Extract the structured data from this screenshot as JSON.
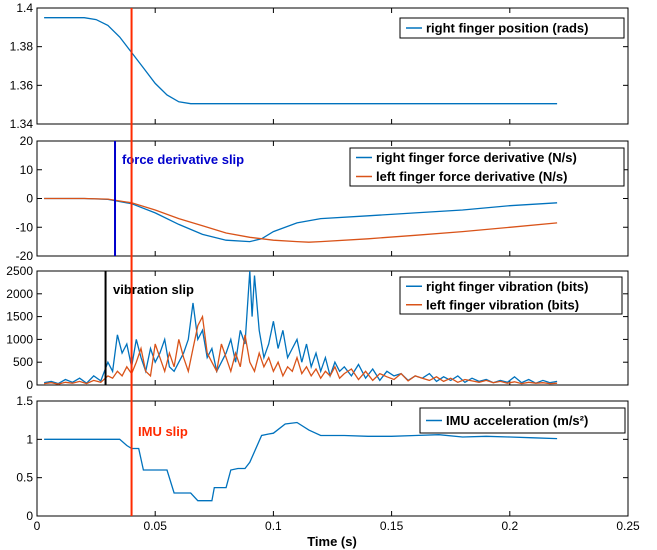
{
  "chart_data": {
    "type": "line",
    "xlabel": "Time (s)",
    "xlim": [
      0,
      0.25
    ],
    "xticks": [
      "0",
      "0.05",
      "0.1",
      "0.15",
      "0.2",
      "0.25"
    ],
    "xtick_values": [
      0,
      0.05,
      0.1,
      0.15,
      0.2,
      0.25
    ],
    "colors": {
      "blue": "#0072BD",
      "orange": "#D95319",
      "red": "#FF2A00",
      "darkblue": "#0000CC",
      "black": "#000000"
    },
    "panels": [
      {
        "ylim": [
          1.34,
          1.4
        ],
        "yticks": [
          "1.34",
          "1.36",
          "1.38",
          "1.4"
        ],
        "ytick_values": [
          1.34,
          1.36,
          1.38,
          1.4
        ],
        "legend_position": "top-right",
        "series": [
          {
            "name": "right finger position (rads)",
            "color": "#0072BD",
            "x": [
              0.003,
              0.02,
              0.025,
              0.03,
              0.035,
              0.04,
              0.045,
              0.05,
              0.055,
              0.06,
              0.065,
              0.07,
              0.1,
              0.15,
              0.2,
              0.22
            ],
            "y": [
              1.395,
              1.395,
              1.394,
              1.391,
              1.385,
              1.377,
              1.369,
              1.361,
              1.355,
              1.3515,
              1.3505,
              1.3505,
              1.3505,
              1.3505,
              1.3505,
              1.3505
            ]
          }
        ]
      },
      {
        "ylim": [
          -20,
          20
        ],
        "yticks": [
          "-20",
          "-10",
          "0",
          "10",
          "20"
        ],
        "ytick_values": [
          -20,
          -10,
          0,
          10,
          20
        ],
        "legend_position": "top-right",
        "annotation": {
          "text": "force derivative slip",
          "x": 0.033,
          "color": "#0000CC"
        },
        "series": [
          {
            "name": "right finger force derivative (N/s)",
            "color": "#0072BD",
            "x": [
              0.003,
              0.02,
              0.03,
              0.04,
              0.05,
              0.06,
              0.07,
              0.08,
              0.09,
              0.095,
              0.1,
              0.11,
              0.12,
              0.14,
              0.16,
              0.18,
              0.2,
              0.22
            ],
            "y": [
              0,
              0,
              -0.3,
              -1.8,
              -5,
              -9,
              -12.5,
              -14.5,
              -15,
              -14,
              -11.5,
              -8.5,
              -7,
              -6,
              -5,
              -4,
              -2.5,
              -1.5
            ]
          },
          {
            "name": "left finger force derivative (N/s)",
            "color": "#D95319",
            "x": [
              0.003,
              0.02,
              0.03,
              0.04,
              0.05,
              0.06,
              0.07,
              0.08,
              0.09,
              0.1,
              0.11,
              0.115,
              0.12,
              0.14,
              0.16,
              0.18,
              0.2,
              0.22
            ],
            "y": [
              0,
              0,
              -0.2,
              -1.5,
              -4,
              -7,
              -9.5,
              -12,
              -13.5,
              -14.5,
              -15,
              -15.2,
              -15,
              -14,
              -12.8,
              -11.5,
              -10,
              -8.5
            ]
          }
        ]
      },
      {
        "ylim": [
          0,
          2500
        ],
        "yticks": [
          "0",
          "500",
          "1000",
          "1500",
          "2000",
          "2500"
        ],
        "ytick_values": [
          0,
          500,
          1000,
          1500,
          2000,
          2500
        ],
        "legend_position": "top-right",
        "annotation": {
          "text": "vibration slip",
          "x": 0.029,
          "color": "#000000"
        },
        "series": [
          {
            "name": "right finger vibration (bits)",
            "color": "#0072BD",
            "x": [
              0.003,
              0.006,
              0.009,
              0.012,
              0.015,
              0.018,
              0.021,
              0.024,
              0.027,
              0.03,
              0.032,
              0.034,
              0.036,
              0.038,
              0.04,
              0.042,
              0.044,
              0.046,
              0.048,
              0.05,
              0.052,
              0.054,
              0.056,
              0.058,
              0.06,
              0.062,
              0.064,
              0.066,
              0.068,
              0.07,
              0.072,
              0.074,
              0.076,
              0.078,
              0.08,
              0.082,
              0.084,
              0.086,
              0.088,
              0.09,
              0.091,
              0.092,
              0.094,
              0.096,
              0.098,
              0.1,
              0.102,
              0.104,
              0.106,
              0.108,
              0.11,
              0.112,
              0.114,
              0.116,
              0.118,
              0.12,
              0.122,
              0.124,
              0.126,
              0.128,
              0.13,
              0.133,
              0.136,
              0.139,
              0.142,
              0.145,
              0.148,
              0.151,
              0.154,
              0.157,
              0.16,
              0.163,
              0.166,
              0.169,
              0.172,
              0.175,
              0.178,
              0.181,
              0.184,
              0.187,
              0.19,
              0.193,
              0.196,
              0.199,
              0.202,
              0.205,
              0.208,
              0.211,
              0.214,
              0.217,
              0.22
            ],
            "y": [
              50,
              80,
              30,
              120,
              60,
              150,
              40,
              200,
              90,
              500,
              300,
              1100,
              700,
              900,
              400,
              1000,
              600,
              300,
              800,
              500,
              700,
              1000,
              400,
              300,
              500,
              700,
              1000,
              1800,
              1000,
              1200,
              600,
              800,
              300,
              500,
              700,
              1000,
              500,
              1200,
              900,
              2500,
              1500,
              2400,
              1200,
              600,
              900,
              1400,
              800,
              1200,
              600,
              800,
              1000,
              500,
              900,
              400,
              700,
              300,
              600,
              200,
              500,
              300,
              400,
              200,
              450,
              150,
              350,
              100,
              300,
              200,
              250,
              100,
              200,
              150,
              250,
              80,
              180,
              100,
              200,
              60,
              150,
              80,
              120,
              50,
              100,
              60,
              180,
              50,
              120,
              40,
              100,
              50,
              80
            ]
          },
          {
            "name": "left finger vibration (bits)",
            "color": "#D95319",
            "x": [
              0.003,
              0.006,
              0.009,
              0.012,
              0.015,
              0.018,
              0.021,
              0.024,
              0.027,
              0.03,
              0.032,
              0.034,
              0.036,
              0.038,
              0.04,
              0.042,
              0.044,
              0.046,
              0.048,
              0.05,
              0.052,
              0.054,
              0.056,
              0.058,
              0.06,
              0.062,
              0.064,
              0.066,
              0.068,
              0.07,
              0.072,
              0.074,
              0.076,
              0.078,
              0.08,
              0.082,
              0.084,
              0.086,
              0.088,
              0.09,
              0.092,
              0.094,
              0.096,
              0.098,
              0.1,
              0.102,
              0.104,
              0.106,
              0.108,
              0.11,
              0.112,
              0.114,
              0.116,
              0.118,
              0.12,
              0.122,
              0.124,
              0.126,
              0.128,
              0.13,
              0.133,
              0.136,
              0.139,
              0.142,
              0.145,
              0.148,
              0.151,
              0.154,
              0.157,
              0.16,
              0.163,
              0.166,
              0.169,
              0.172,
              0.175,
              0.178,
              0.181,
              0.184,
              0.187,
              0.19,
              0.193,
              0.196,
              0.199,
              0.202,
              0.205,
              0.208,
              0.211,
              0.214,
              0.217,
              0.22
            ],
            "y": [
              30,
              50,
              20,
              60,
              40,
              80,
              30,
              100,
              60,
              200,
              150,
              300,
              200,
              400,
              250,
              500,
              800,
              300,
              200,
              900,
              600,
              300,
              700,
              400,
              1000,
              600,
              300,
              800,
              1300,
              1500,
              700,
              500,
              300,
              900,
              600,
              300,
              700,
              400,
              1100,
              500,
              300,
              700,
              400,
              600,
              300,
              500,
              200,
              400,
              300,
              600,
              250,
              400,
              200,
              350,
              150,
              300,
              200,
              400,
              150,
              250,
              350,
              120,
              300,
              100,
              250,
              180,
              120,
              250,
              90,
              200,
              150,
              100,
              180,
              80,
              150,
              60,
              120,
              90,
              60,
              100,
              50,
              80,
              40,
              70,
              30,
              60,
              40,
              50,
              30,
              40
            ]
          }
        ]
      },
      {
        "ylim": [
          0,
          1.5
        ],
        "yticks": [
          "0",
          "0.5",
          "1",
          "1.5"
        ],
        "ytick_values": [
          0,
          0.5,
          1,
          1.5
        ],
        "legend_position": "top-right",
        "annotation": {
          "text": "IMU slip",
          "x": 0.04,
          "color": "#FF2A00"
        },
        "series": [
          {
            "name": "IMU acceleration (m/s²)",
            "color": "#0072BD",
            "x": [
              0.003,
              0.02,
              0.035,
              0.038,
              0.04,
              0.043,
              0.045,
              0.05,
              0.055,
              0.058,
              0.06,
              0.065,
              0.068,
              0.07,
              0.074,
              0.075,
              0.08,
              0.082,
              0.085,
              0.088,
              0.09,
              0.095,
              0.098,
              0.1,
              0.105,
              0.11,
              0.115,
              0.12,
              0.13,
              0.14,
              0.15,
              0.16,
              0.17,
              0.18,
              0.19,
              0.2,
              0.21,
              0.22
            ],
            "y": [
              1,
              1,
              1,
              0.92,
              0.88,
              0.88,
              0.6,
              0.6,
              0.6,
              0.3,
              0.3,
              0.3,
              0.2,
              0.2,
              0.2,
              0.37,
              0.37,
              0.6,
              0.62,
              0.62,
              0.7,
              1.05,
              1.07,
              1.08,
              1.2,
              1.22,
              1.12,
              1.05,
              1.05,
              1.04,
              1.04,
              1.05,
              1.06,
              1.03,
              1.04,
              1.03,
              1.02,
              1.01
            ]
          }
        ]
      }
    ]
  }
}
